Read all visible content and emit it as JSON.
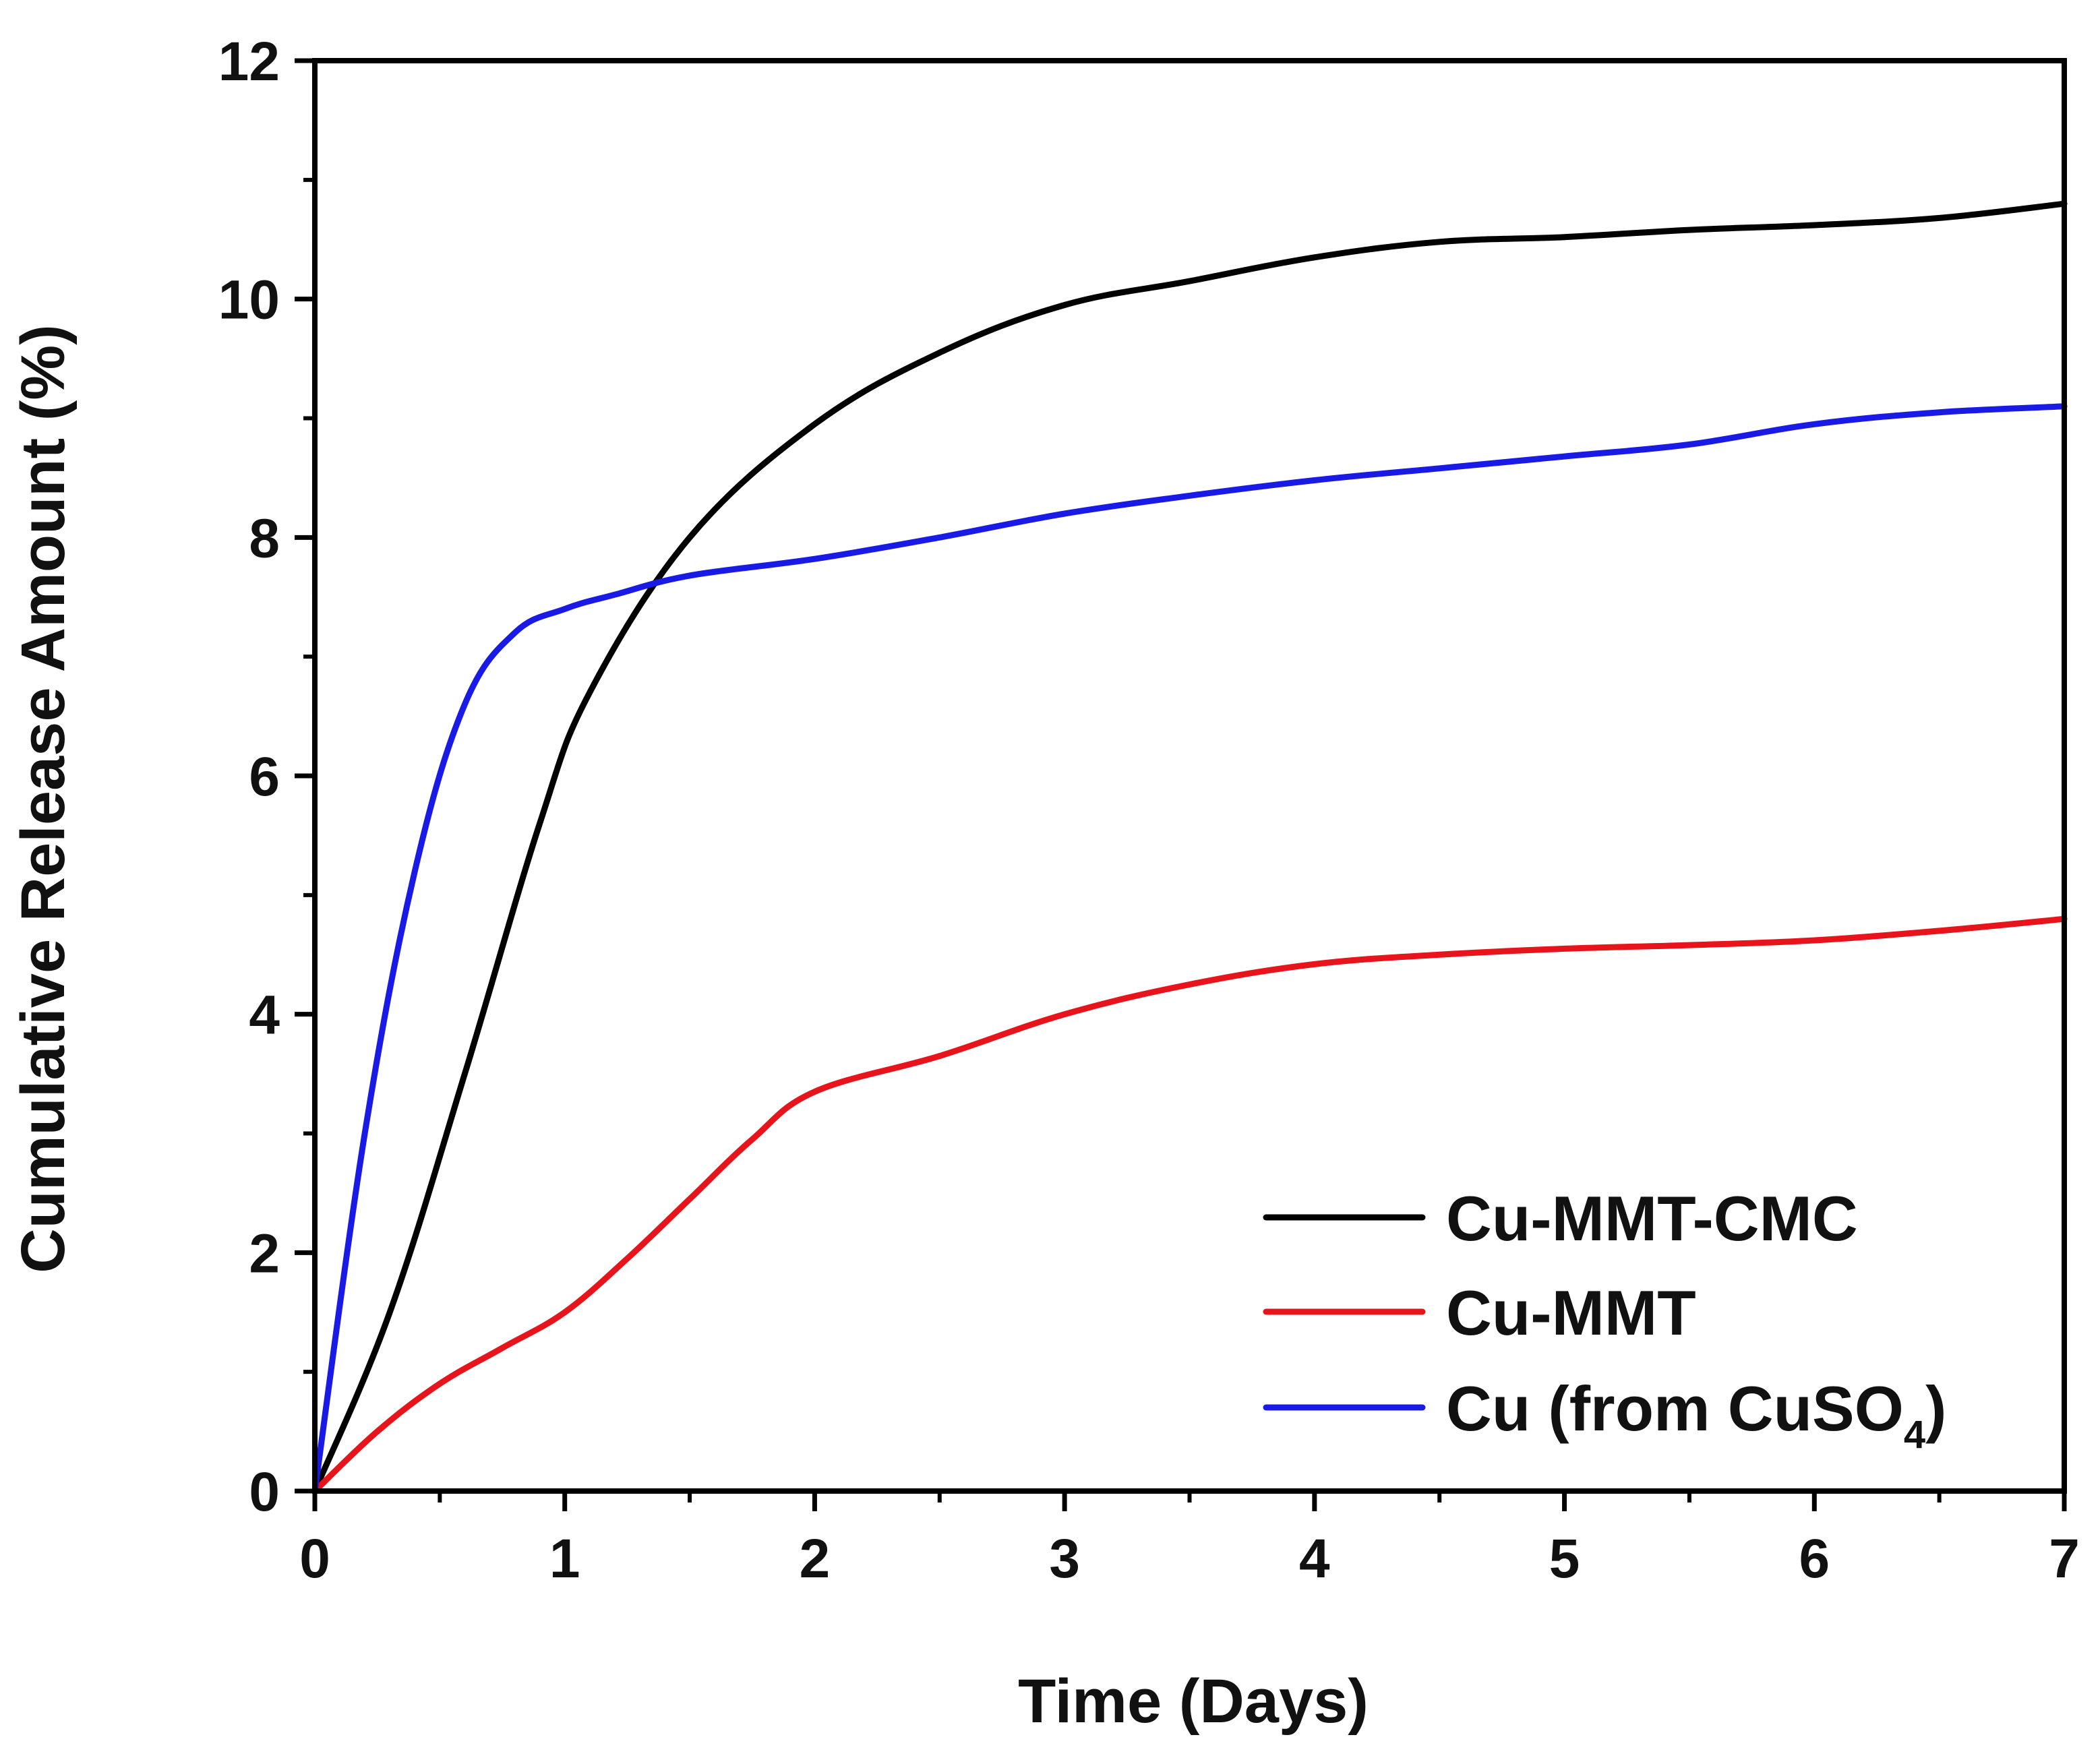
{
  "chart_data": {
    "type": "line",
    "title": "",
    "xlabel": "Time (Days)",
    "ylabel": "Cumulative Release Amount (%)",
    "xlim": [
      0,
      7
    ],
    "ylim": [
      0,
      12
    ],
    "xticks": [
      "0",
      "1",
      "2",
      "3",
      "4",
      "5",
      "6",
      "7"
    ],
    "yticks": [
      "0",
      "2",
      "4",
      "6",
      "8",
      "10",
      "12"
    ],
    "grid": false,
    "legend_position": "bottom-right",
    "series": [
      {
        "name": "Cu-MMT-CMC",
        "label_main": "Cu-MMT-CMC",
        "label_sub": "",
        "label_tail": "",
        "color": "#000000",
        "x": [
          0,
          0.3,
          0.6,
          0.9,
          1.1,
          1.5,
          2.0,
          2.5,
          3.0,
          3.5,
          4.0,
          4.5,
          5.0,
          5.5,
          6.0,
          6.5,
          7.0
        ],
        "y": [
          0,
          1.5,
          3.5,
          5.6,
          6.7,
          8.0,
          8.95,
          9.55,
          9.95,
          10.15,
          10.35,
          10.48,
          10.52,
          10.58,
          10.62,
          10.68,
          10.8
        ]
      },
      {
        "name": "Cu-MMT",
        "label_main": "Cu-MMT",
        "label_sub": "",
        "label_tail": "",
        "color": "#e8141c",
        "x": [
          0,
          0.25,
          0.5,
          0.75,
          1.0,
          1.25,
          1.5,
          1.75,
          2.0,
          2.5,
          3.0,
          3.5,
          4.0,
          4.5,
          5.0,
          5.5,
          6.0,
          6.5,
          7.0
        ],
        "y": [
          0,
          0.5,
          0.9,
          1.2,
          1.5,
          1.95,
          2.45,
          2.95,
          3.35,
          3.65,
          4.0,
          4.25,
          4.42,
          4.5,
          4.55,
          4.58,
          4.62,
          4.7,
          4.8
        ]
      },
      {
        "name": "Cu (from CuSO4)",
        "label_main": "Cu (from CuSO",
        "label_sub": "4",
        "label_tail": ")",
        "color": "#1a1ae6",
        "x": [
          0,
          0.2,
          0.4,
          0.6,
          0.8,
          1.0,
          1.2,
          1.5,
          2.0,
          2.5,
          3.0,
          3.5,
          4.0,
          4.5,
          5.0,
          5.5,
          6.0,
          6.5,
          7.0
        ],
        "y": [
          0,
          3.0,
          5.2,
          6.6,
          7.2,
          7.4,
          7.52,
          7.68,
          7.82,
          8.0,
          8.2,
          8.35,
          8.48,
          8.58,
          8.68,
          8.78,
          8.95,
          9.05,
          9.1
        ]
      }
    ]
  }
}
